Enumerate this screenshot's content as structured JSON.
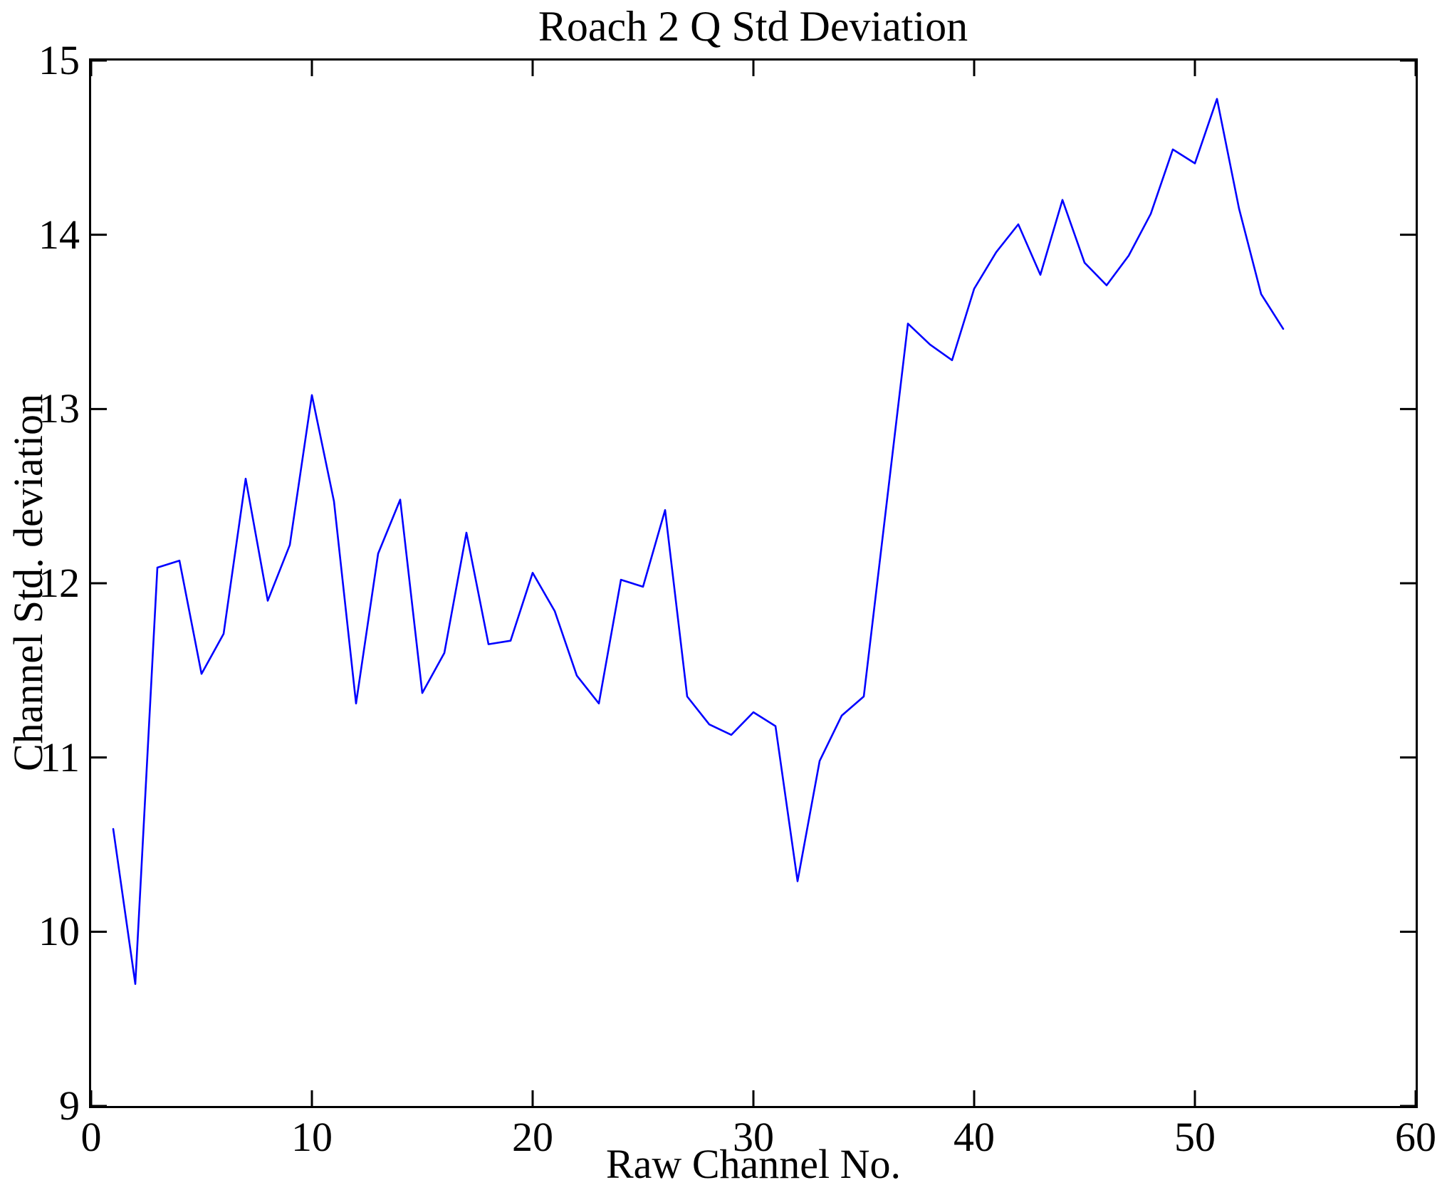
{
  "chart_data": {
    "type": "line",
    "title": "Roach 2 Q Std Deviation",
    "xlabel": "Raw Channel No.",
    "ylabel": "Channel Std. deviation",
    "xlim": [
      0,
      60
    ],
    "ylim": [
      9,
      15
    ],
    "xticks": [
      0,
      10,
      20,
      30,
      40,
      50,
      60
    ],
    "yticks": [
      9,
      10,
      11,
      12,
      13,
      14,
      15
    ],
    "grid": false,
    "legend": null,
    "line_color": "#0000FF",
    "axis_color": "#000000",
    "background_color": "#FFFFFF",
    "x": [
      1,
      2,
      3,
      4,
      5,
      6,
      7,
      8,
      9,
      10,
      11,
      12,
      13,
      14,
      15,
      16,
      17,
      18,
      19,
      20,
      21,
      22,
      23,
      24,
      25,
      26,
      27,
      28,
      29,
      30,
      31,
      32,
      33,
      34,
      35,
      36,
      37,
      38,
      39,
      40,
      41,
      42,
      43,
      44,
      45,
      46,
      47,
      48,
      49,
      50,
      51,
      52,
      53,
      54
    ],
    "values": [
      10.59,
      9.7,
      12.09,
      12.13,
      11.48,
      11.71,
      12.6,
      11.9,
      12.22,
      13.08,
      12.47,
      11.31,
      12.17,
      12.48,
      11.37,
      11.6,
      12.29,
      11.65,
      11.67,
      12.06,
      11.84,
      11.47,
      11.31,
      12.02,
      11.98,
      12.42,
      11.35,
      11.19,
      11.13,
      11.26,
      11.18,
      10.29,
      10.98,
      11.24,
      11.35,
      12.42,
      13.49,
      13.37,
      13.28,
      13.69,
      13.9,
      14.06,
      13.77,
      14.2,
      13.84,
      13.71,
      13.88,
      14.12,
      14.49,
      14.41,
      14.78,
      14.15,
      13.66,
      13.46
    ]
  }
}
